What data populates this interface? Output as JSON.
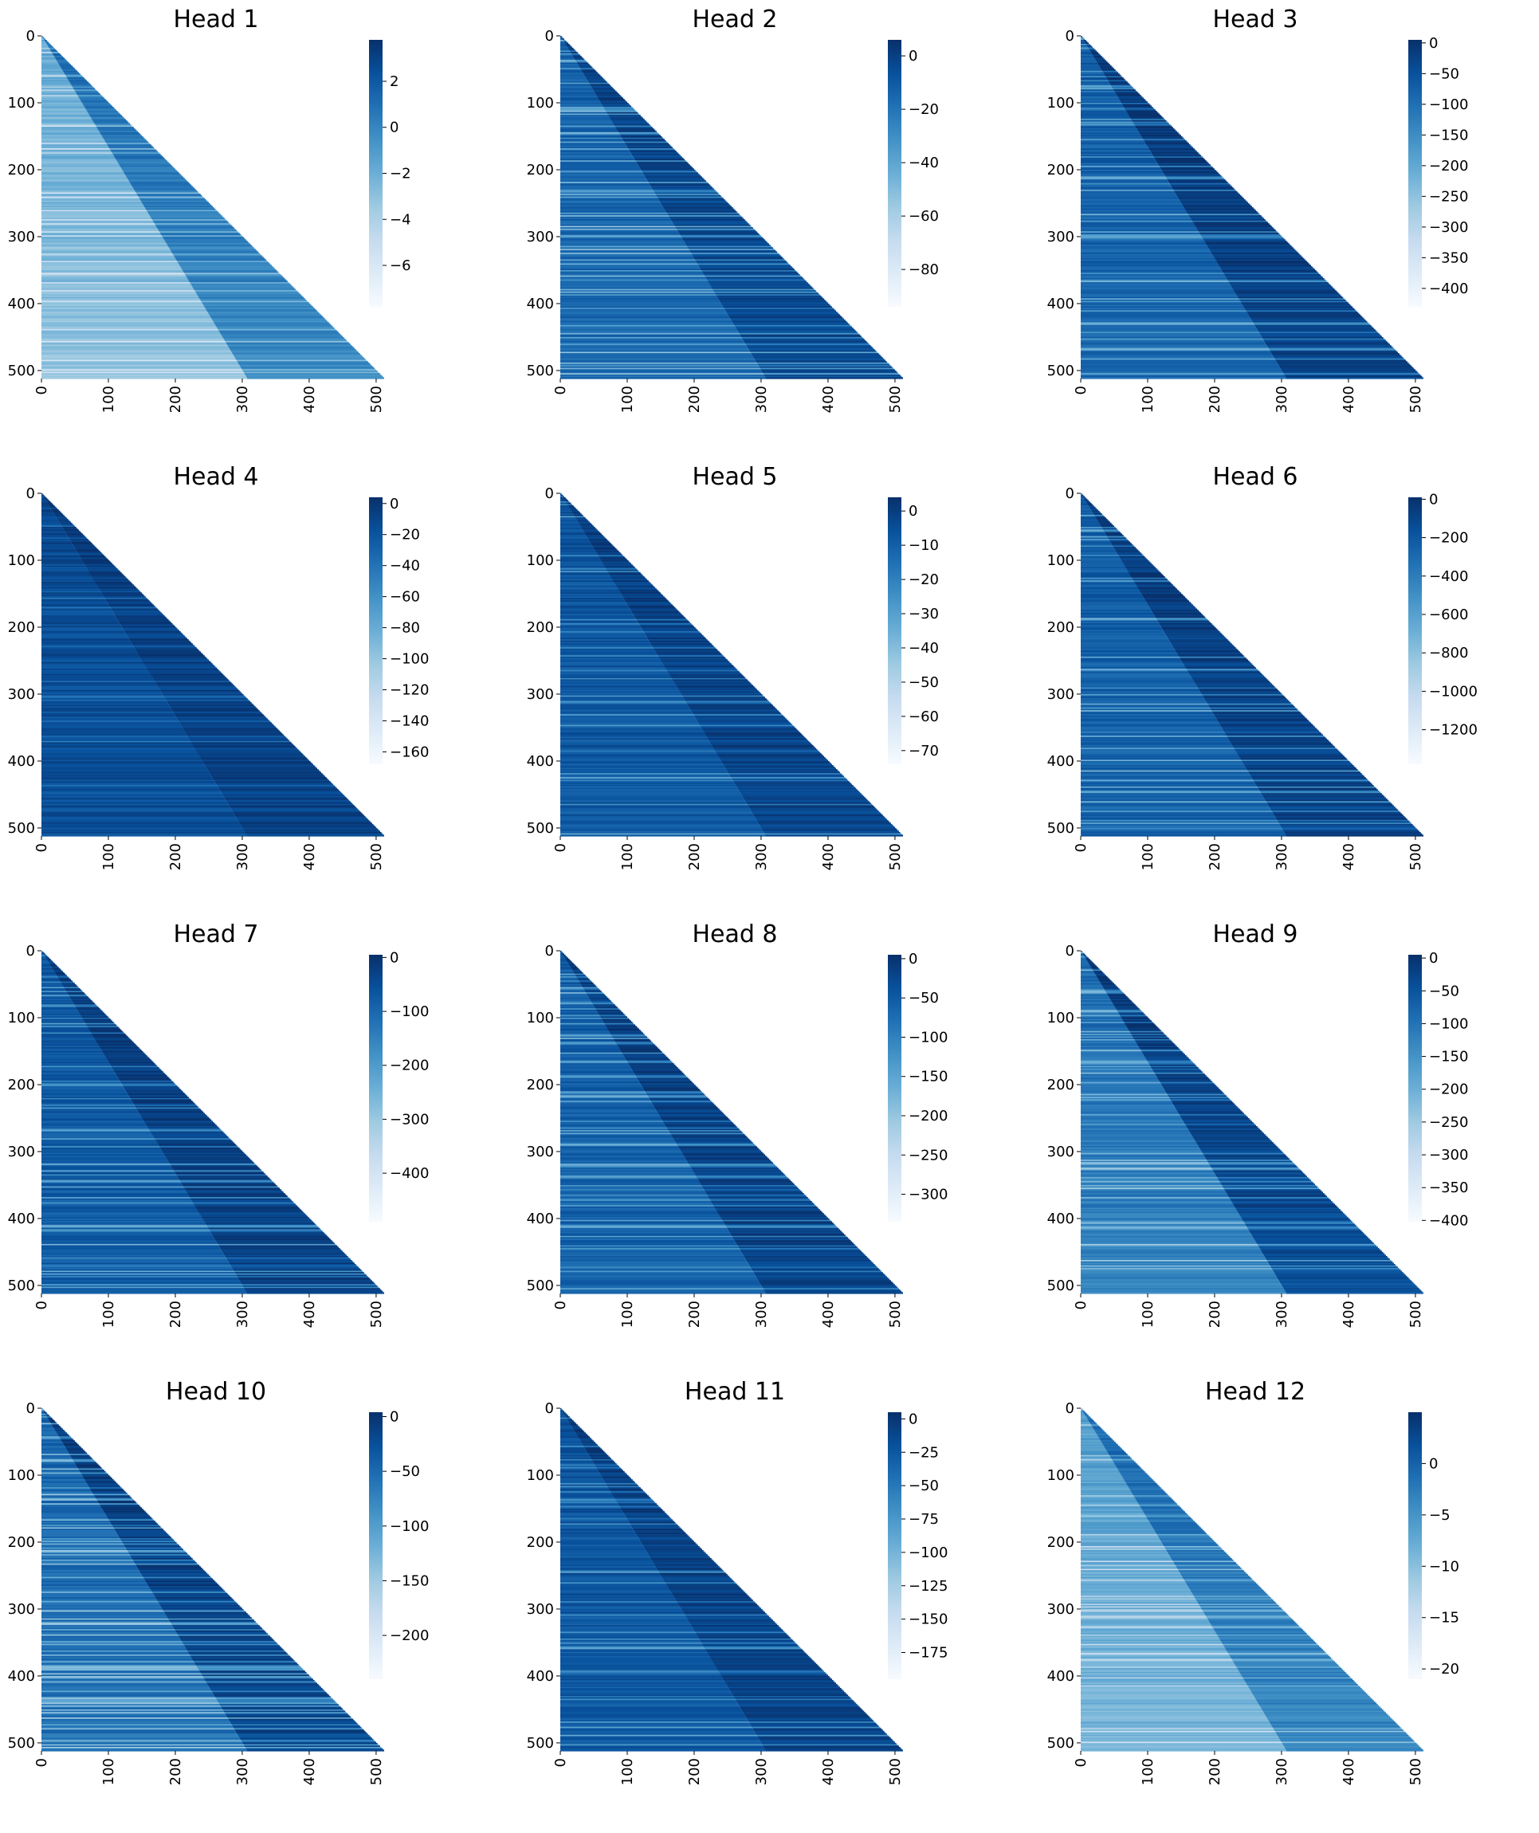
{
  "colormap": {
    "name": "Blues",
    "dark": "#08306b",
    "mid": "#2171b5",
    "light": "#f7fbff"
  },
  "chart_data": [
    {
      "type": "heatmap",
      "title": "Head 1",
      "mask": "lower-triangular",
      "size": 512,
      "xticks": [
        0,
        100,
        200,
        300,
        400,
        500
      ],
      "yticks": [
        0,
        100,
        200,
        300,
        400,
        500
      ],
      "colorbar": {
        "vmin": -7.8,
        "vmax": 3.8,
        "ticks": [
          2,
          0,
          -2,
          -4,
          -6
        ],
        "tick_labels": [
          "2",
          "0",
          "−2",
          "−4",
          "−6"
        ]
      },
      "style": {
        "base": 0.52,
        "banding": 0.28,
        "band_count": 40,
        "diag_gain": 0.25,
        "vertical_tint": 0.12
      }
    },
    {
      "type": "heatmap",
      "title": "Head 2",
      "mask": "lower-triangular",
      "size": 512,
      "xticks": [
        0,
        100,
        200,
        300,
        400,
        500
      ],
      "yticks": [
        0,
        100,
        200,
        300,
        400,
        500
      ],
      "colorbar": {
        "vmin": -94,
        "vmax": 6,
        "ticks": [
          0,
          -20,
          -40,
          -60,
          -80
        ],
        "tick_labels": [
          "0",
          "−20",
          "−40",
          "−60",
          "−80"
        ]
      },
      "style": {
        "base": 0.83,
        "banding": 0.38,
        "band_count": 55,
        "diag_gain": 0.12,
        "vertical_tint": 0.05
      }
    },
    {
      "type": "heatmap",
      "title": "Head 3",
      "mask": "lower-triangular",
      "size": 512,
      "xticks": [
        0,
        100,
        200,
        300,
        400,
        500
      ],
      "yticks": [
        0,
        100,
        200,
        300,
        400,
        500
      ],
      "colorbar": {
        "vmin": -430,
        "vmax": 5,
        "ticks": [
          0,
          -50,
          -100,
          -150,
          -200,
          -250,
          -300,
          -350,
          -400
        ],
        "tick_labels": [
          "0",
          "−50",
          "−100",
          "−150",
          "−200",
          "−250",
          "−300",
          "−350",
          "−400"
        ]
      },
      "style": {
        "base": 0.84,
        "banding": 0.32,
        "band_count": 50,
        "diag_gain": 0.14,
        "vertical_tint": 0.05
      }
    },
    {
      "type": "heatmap",
      "title": "Head 4",
      "mask": "lower-triangular",
      "size": 512,
      "xticks": [
        0,
        100,
        200,
        300,
        400,
        500
      ],
      "yticks": [
        0,
        100,
        200,
        300,
        400,
        500
      ],
      "colorbar": {
        "vmin": -168,
        "vmax": 4,
        "ticks": [
          0,
          -20,
          -40,
          -60,
          -80,
          -100,
          -120,
          -140,
          -160
        ],
        "tick_labels": [
          "0",
          "−20",
          "−40",
          "−60",
          "−80",
          "−100",
          "−120",
          "−140",
          "−160"
        ]
      },
      "style": {
        "base": 0.9,
        "banding": 0.18,
        "band_count": 14,
        "diag_gain": 0.05,
        "vertical_tint": 0.02
      }
    },
    {
      "type": "heatmap",
      "title": "Head 5",
      "mask": "lower-triangular",
      "size": 512,
      "xticks": [
        0,
        100,
        200,
        300,
        400,
        500
      ],
      "yticks": [
        0,
        100,
        200,
        300,
        400,
        500
      ],
      "colorbar": {
        "vmin": -74,
        "vmax": 4,
        "ticks": [
          0,
          -10,
          -20,
          -30,
          -40,
          -50,
          -60,
          -70
        ],
        "tick_labels": [
          "0",
          "−10",
          "−20",
          "−30",
          "−40",
          "−50",
          "−60",
          "−70"
        ]
      },
      "style": {
        "base": 0.87,
        "banding": 0.3,
        "band_count": 26,
        "diag_gain": 0.08,
        "vertical_tint": 0.03
      }
    },
    {
      "type": "heatmap",
      "title": "Head 6",
      "mask": "lower-triangular",
      "size": 512,
      "xticks": [
        0,
        100,
        200,
        300,
        400,
        500
      ],
      "yticks": [
        0,
        100,
        200,
        300,
        400,
        500
      ],
      "colorbar": {
        "vmin": -1380,
        "vmax": 10,
        "ticks": [
          0,
          -200,
          -400,
          -600,
          -800,
          -1000,
          -1200
        ],
        "tick_labels": [
          "0",
          "−200",
          "−400",
          "−600",
          "−800",
          "−1000",
          "−1200"
        ]
      },
      "style": {
        "base": 0.84,
        "banding": 0.34,
        "band_count": 36,
        "diag_gain": 0.12,
        "vertical_tint": 0.04
      }
    },
    {
      "type": "heatmap",
      "title": "Head 7",
      "mask": "lower-triangular",
      "size": 512,
      "xticks": [
        0,
        100,
        200,
        300,
        400,
        500
      ],
      "yticks": [
        0,
        100,
        200,
        300,
        400,
        500
      ],
      "colorbar": {
        "vmin": -490,
        "vmax": 5,
        "ticks": [
          0,
          -100,
          -200,
          -300,
          -400
        ],
        "tick_labels": [
          "0",
          "−100",
          "−200",
          "−300",
          "−400"
        ]
      },
      "style": {
        "base": 0.86,
        "banding": 0.36,
        "band_count": 46,
        "diag_gain": 0.1,
        "vertical_tint": 0.03
      }
    },
    {
      "type": "heatmap",
      "title": "Head 8",
      "mask": "lower-triangular",
      "size": 512,
      "xticks": [
        0,
        100,
        200,
        300,
        400,
        500
      ],
      "yticks": [
        0,
        100,
        200,
        300,
        400,
        500
      ],
      "colorbar": {
        "vmin": -335,
        "vmax": 5,
        "ticks": [
          0,
          -50,
          -100,
          -150,
          -200,
          -250,
          -300
        ],
        "tick_labels": [
          "0",
          "−50",
          "−100",
          "−150",
          "−200",
          "−250",
          "−300"
        ]
      },
      "style": {
        "base": 0.84,
        "banding": 0.34,
        "band_count": 60,
        "diag_gain": 0.12,
        "vertical_tint": 0.04
      }
    },
    {
      "type": "heatmap",
      "title": "Head 9",
      "mask": "lower-triangular",
      "size": 512,
      "xticks": [
        0,
        100,
        200,
        300,
        400,
        500
      ],
      "yticks": [
        0,
        100,
        200,
        300,
        400,
        500
      ],
      "colorbar": {
        "vmin": -402,
        "vmax": 5,
        "ticks": [
          0,
          -50,
          -100,
          -150,
          -200,
          -250,
          -300,
          -350,
          -400
        ],
        "tick_labels": [
          "0",
          "−50",
          "−100",
          "−150",
          "−200",
          "−250",
          "−300",
          "−350",
          "−400"
        ]
      },
      "style": {
        "base": 0.78,
        "banding": 0.34,
        "band_count": 50,
        "diag_gain": 0.2,
        "vertical_tint": 0.1
      }
    },
    {
      "type": "heatmap",
      "title": "Head 10",
      "mask": "lower-triangular",
      "size": 512,
      "xticks": [
        0,
        100,
        200,
        300,
        400,
        500
      ],
      "yticks": [
        0,
        100,
        200,
        300,
        400,
        500
      ],
      "colorbar": {
        "vmin": -240,
        "vmax": 4,
        "ticks": [
          0,
          -50,
          -100,
          -150,
          -200
        ],
        "tick_labels": [
          "0",
          "−50",
          "−100",
          "−150",
          "−200"
        ]
      },
      "style": {
        "base": 0.8,
        "banding": 0.4,
        "band_count": 70,
        "diag_gain": 0.16,
        "vertical_tint": 0.05
      }
    },
    {
      "type": "heatmap",
      "title": "Head 11",
      "mask": "lower-triangular",
      "size": 512,
      "xticks": [
        0,
        100,
        200,
        300,
        400,
        500
      ],
      "yticks": [
        0,
        100,
        200,
        300,
        400,
        500
      ],
      "colorbar": {
        "vmin": -195,
        "vmax": 5,
        "ticks": [
          0,
          -25,
          -50,
          -75,
          -100,
          -125,
          -150,
          -175
        ],
        "tick_labels": [
          "0",
          "−25",
          "−50",
          "−75",
          "−100",
          "−125",
          "−150",
          "−175"
        ]
      },
      "style": {
        "base": 0.87,
        "banding": 0.3,
        "band_count": 34,
        "diag_gain": 0.08,
        "vertical_tint": 0.03
      }
    },
    {
      "type": "heatmap",
      "title": "Head 12",
      "mask": "lower-triangular",
      "size": 512,
      "xticks": [
        0,
        100,
        200,
        300,
        400,
        500
      ],
      "yticks": [
        0,
        100,
        200,
        300,
        400,
        500
      ],
      "colorbar": {
        "vmin": -21,
        "vmax": 5,
        "ticks": [
          0,
          -5,
          -10,
          -15,
          -20
        ],
        "tick_labels": [
          "0",
          "−5",
          "−10",
          "−15",
          "−20"
        ]
      },
      "style": {
        "base": 0.58,
        "banding": 0.26,
        "band_count": 40,
        "diag_gain": 0.2,
        "vertical_tint": 0.12
      }
    }
  ]
}
